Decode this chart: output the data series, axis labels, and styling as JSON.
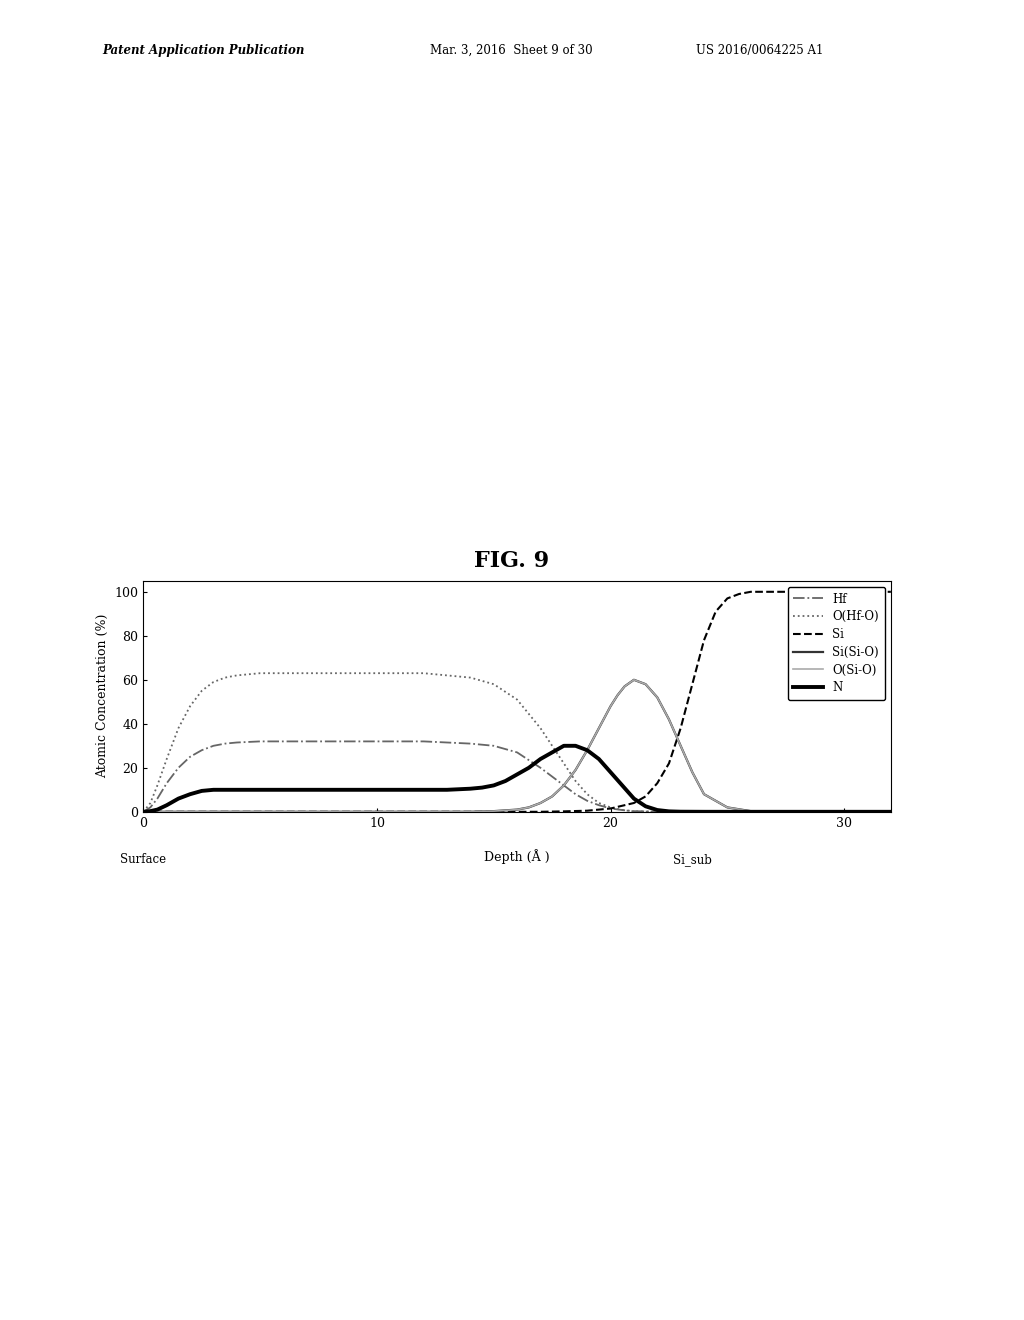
{
  "title": "FIG. 9",
  "xlabel": "Depth (Å )",
  "ylabel": "Atomic Concentration (%)",
  "xlim": [
    0,
    32
  ],
  "ylim": [
    0,
    105
  ],
  "yticks": [
    0,
    20,
    40,
    60,
    80,
    100
  ],
  "xticks": [
    0,
    10,
    20,
    30
  ],
  "xtick_labels": [
    "0",
    "10",
    "20",
    "30"
  ],
  "background_color": "#ffffff",
  "series": [
    {
      "label": "Hf",
      "color": "#666666",
      "linestyle": "-.",
      "linewidth": 1.3,
      "x": [
        0,
        0.3,
        0.6,
        1,
        1.5,
        2,
        2.5,
        3,
        3.5,
        4,
        5,
        6,
        7,
        8,
        9,
        10,
        11,
        12,
        13,
        14,
        15,
        16,
        17,
        17.5,
        18,
        18.5,
        19,
        19.5,
        20,
        20.5,
        21,
        22,
        23,
        24,
        25,
        26,
        27,
        28,
        29,
        30,
        32
      ],
      "y": [
        0,
        2,
        6,
        13,
        20,
        25,
        28,
        30,
        31,
        31.5,
        32,
        32,
        32,
        32,
        32,
        32,
        32,
        32,
        31.5,
        31,
        30,
        27,
        20,
        16,
        12,
        8,
        5,
        3,
        1.5,
        0.8,
        0.3,
        0.05,
        0,
        0,
        0,
        0,
        0,
        0,
        0,
        0,
        0
      ]
    },
    {
      "label": "O(Hf-O)",
      "color": "#666666",
      "linestyle": ":",
      "linewidth": 1.3,
      "x": [
        0,
        0.3,
        0.6,
        1,
        1.5,
        2,
        2.5,
        3,
        3.5,
        4,
        5,
        6,
        7,
        8,
        9,
        10,
        11,
        12,
        13,
        14,
        15,
        16,
        17,
        17.5,
        18,
        18.5,
        19,
        19.5,
        20,
        20.5,
        21,
        22,
        23,
        24,
        25,
        26,
        27,
        28,
        29,
        30,
        32
      ],
      "y": [
        0,
        4,
        12,
        24,
        38,
        48,
        55,
        59,
        61,
        62,
        63,
        63,
        63,
        63,
        63,
        63,
        63,
        63,
        62,
        61,
        58,
        51,
        38,
        30,
        22,
        14,
        8,
        4,
        2,
        0.8,
        0.2,
        0.02,
        0,
        0,
        0,
        0,
        0,
        0,
        0,
        0,
        0
      ]
    },
    {
      "label": "Si",
      "color": "#000000",
      "linestyle": "--",
      "linewidth": 1.5,
      "x": [
        0,
        5,
        10,
        14,
        16,
        17,
        18,
        19,
        20,
        21,
        21.5,
        22,
        22.5,
        23,
        23.5,
        24,
        24.5,
        25,
        25.5,
        26,
        27,
        28,
        29,
        30,
        32
      ],
      "y": [
        0,
        0,
        0,
        0,
        0,
        0,
        0.2,
        0.5,
        1.5,
        4,
        7,
        13,
        22,
        38,
        58,
        78,
        91,
        97,
        99,
        100,
        100,
        100,
        100,
        100,
        100
      ]
    },
    {
      "label": "Si(Si-O)",
      "color": "#333333",
      "linestyle": "-",
      "linewidth": 1.6,
      "x": [
        0,
        5,
        10,
        14,
        15,
        16,
        16.5,
        17,
        17.5,
        18,
        18.5,
        19,
        19.5,
        20,
        20.3,
        20.6,
        21,
        21.5,
        22,
        22.5,
        23,
        23.5,
        24,
        25,
        26,
        27,
        28,
        29,
        30,
        32
      ],
      "y": [
        0,
        0,
        0,
        0,
        0.3,
        1,
        2,
        4,
        7,
        12,
        19,
        28,
        38,
        48,
        53,
        57,
        60,
        58,
        52,
        42,
        30,
        18,
        8,
        2,
        0.3,
        0.03,
        0,
        0,
        0,
        0
      ]
    },
    {
      "label": "O(Si-O)",
      "color": "#aaaaaa",
      "linestyle": "-",
      "linewidth": 1.2,
      "x": [
        0,
        5,
        10,
        14,
        15,
        16,
        16.5,
        17,
        17.5,
        18,
        18.5,
        19,
        19.5,
        20,
        20.3,
        20.6,
        21,
        21.5,
        22,
        22.5,
        23,
        23.5,
        24,
        25,
        26,
        27,
        28,
        29,
        30,
        32
      ],
      "y": [
        0,
        0,
        0,
        0,
        0.3,
        1,
        2,
        4,
        7,
        12,
        19,
        28,
        38,
        48,
        53,
        57,
        60,
        58,
        52,
        42,
        30,
        18,
        8,
        2,
        0.3,
        0.03,
        0,
        0,
        0,
        0
      ]
    },
    {
      "label": "N",
      "color": "#000000",
      "linestyle": "-",
      "linewidth": 2.8,
      "x": [
        0,
        0.3,
        0.6,
        1,
        1.5,
        2,
        2.5,
        3,
        3.5,
        4,
        5,
        6,
        7,
        8,
        9,
        10,
        11,
        12,
        13,
        14,
        14.5,
        15,
        15.5,
        16,
        16.5,
        17,
        17.5,
        18,
        18.5,
        19,
        19.5,
        20,
        20.5,
        21,
        21.5,
        22,
        22.5,
        23,
        24,
        25,
        26,
        27,
        28,
        29,
        30,
        32
      ],
      "y": [
        0,
        0.3,
        1,
        3,
        6,
        8,
        9.5,
        10,
        10,
        10,
        10,
        10,
        10,
        10,
        10,
        10,
        10,
        10,
        10,
        10.5,
        11,
        12,
        14,
        17,
        20,
        24,
        27,
        30,
        30,
        28,
        24,
        18,
        12,
        6,
        2.5,
        0.8,
        0.2,
        0.05,
        0,
        0,
        0,
        0,
        0,
        0,
        0,
        0
      ]
    }
  ],
  "header_left": "Patent Application Publication",
  "header_mid": "Mar. 3, 2016  Sheet 9 of 30",
  "header_right": "US 2016/0064225 A1"
}
